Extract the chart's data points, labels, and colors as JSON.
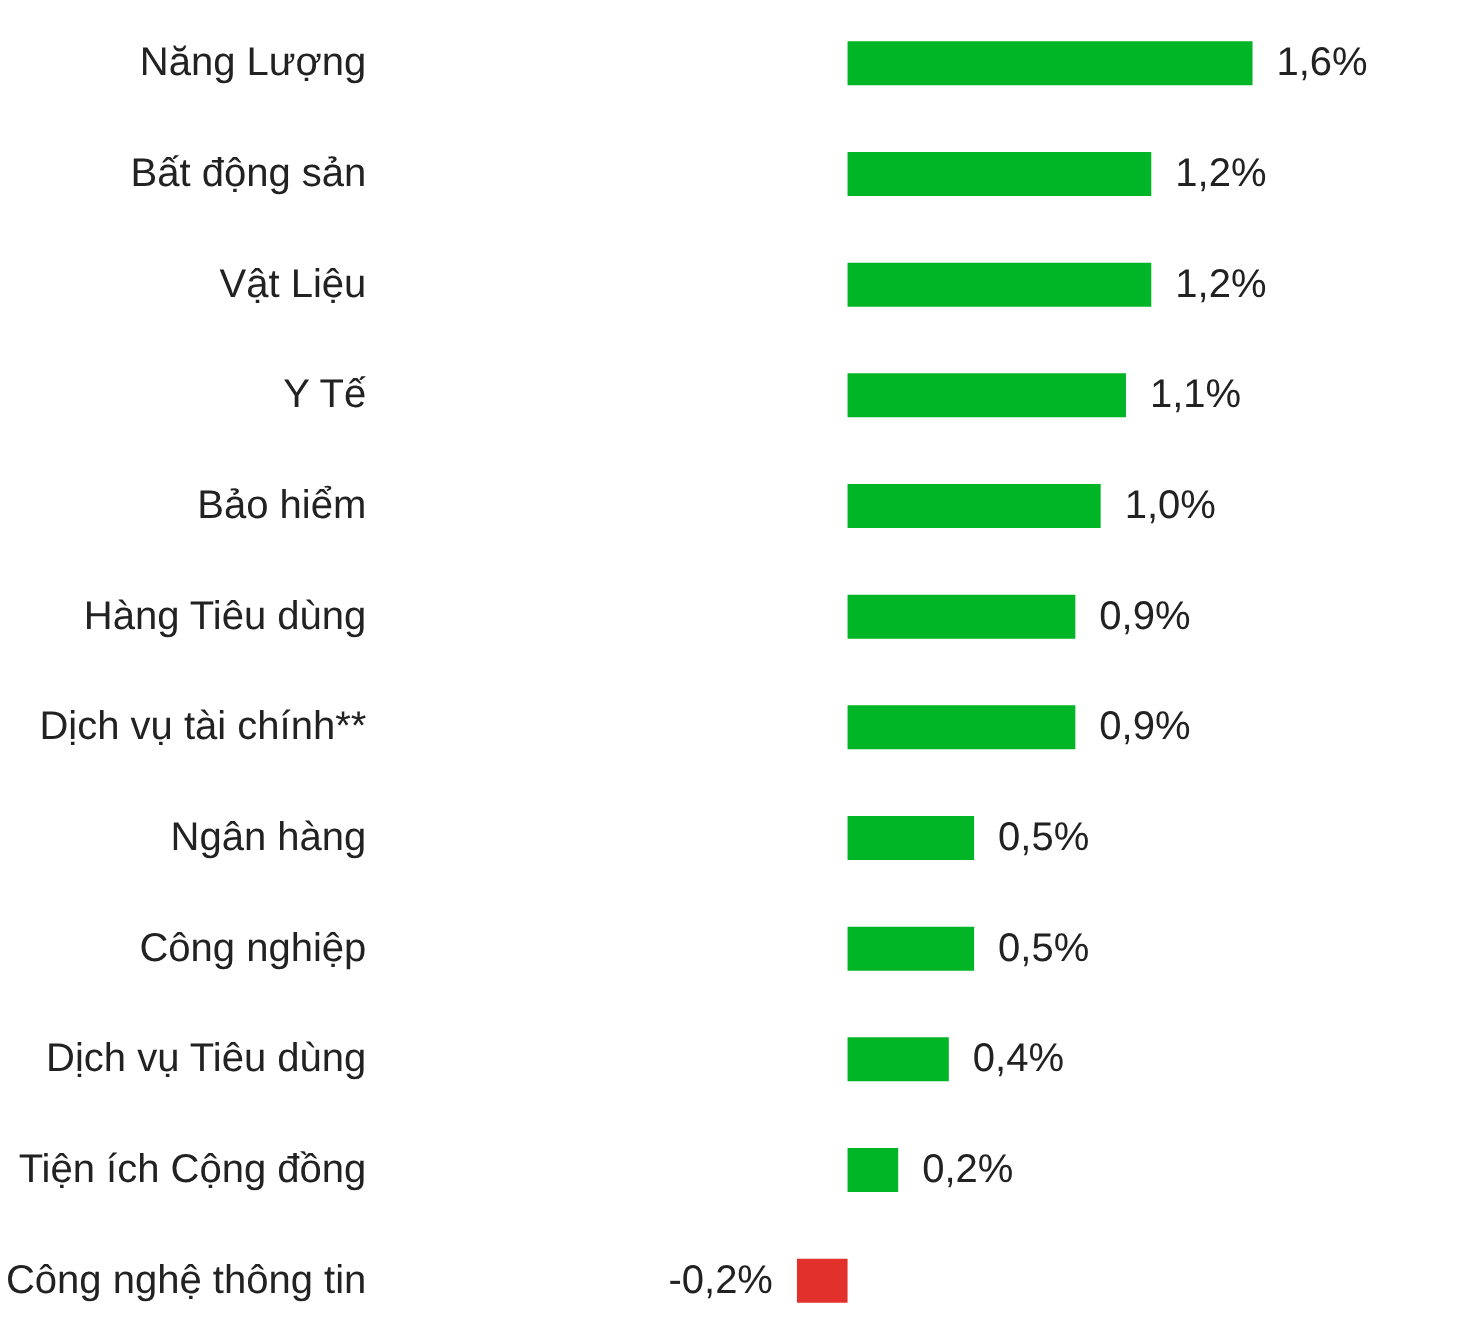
{
  "chart_data": {
    "type": "bar",
    "orientation": "horizontal",
    "categories": [
      "Năng Lượng",
      "Bất động sản",
      "Vật Liệu",
      "Y Tế",
      "Bảo hiểm",
      "Hàng Tiêu dùng",
      "Dịch vụ tài chính**",
      "Ngân hàng",
      "Công nghiệp",
      "Dịch vụ Tiêu dùng",
      "Tiện ích Cộng đồng",
      "Công nghệ thông tin"
    ],
    "values": [
      1.6,
      1.2,
      1.2,
      1.1,
      1.0,
      0.9,
      0.9,
      0.5,
      0.5,
      0.4,
      0.2,
      -0.2
    ],
    "colors": [
      "#00b526",
      "#00b526",
      "#00b526",
      "#00b526",
      "#00b526",
      "#00b526",
      "#00b526",
      "#00b526",
      "#00b526",
      "#00b526",
      "#00b526",
      "#e2302a"
    ],
    "value_labels": [
      "1,6%",
      "1,2%",
      "1,2%",
      "1,1%",
      "1,0%",
      "0,9%",
      "0,9%",
      "0,5%",
      "0,5%",
      "0,4%",
      "0,2%",
      "-0,2%"
    ]
  }
}
